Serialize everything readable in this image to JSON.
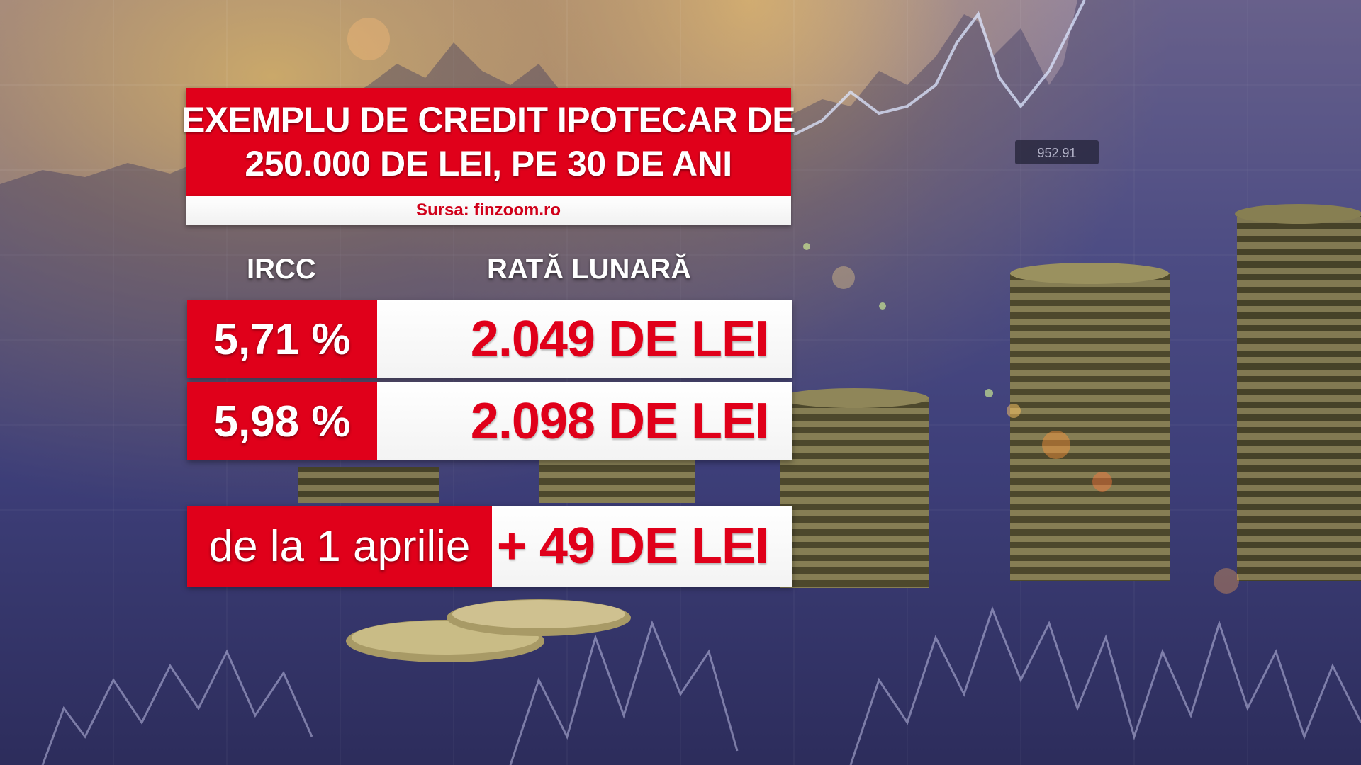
{
  "graphic": {
    "title_line1": "EXEMPLU DE CREDIT IPOTECAR DE",
    "title_line2": "250.000 DE LEI, PE 30 DE ANI",
    "source": "Sursa: finzoom.ro",
    "ticker_readout": "952.91"
  },
  "table": {
    "headers": {
      "ircc": "IRCC",
      "rata_lunara": "RATĂ LUNARĂ"
    },
    "rows": [
      {
        "ircc": "5,71 %",
        "rata": "2.049 DE LEI"
      },
      {
        "ircc": "5,98 %",
        "rata": "2.098 DE LEI"
      }
    ]
  },
  "change": {
    "label": "de la 1 aprilie",
    "value": "+ 49 DE LEI"
  },
  "colors": {
    "accent_red": "#e0001a",
    "panel_white": "#ffffff",
    "background_blue": "#4a4c8c"
  }
}
